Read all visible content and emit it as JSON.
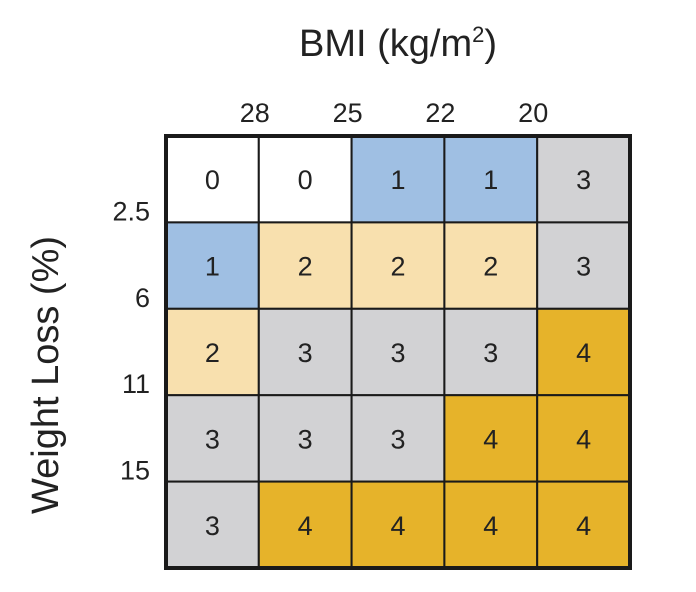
{
  "chart_data": {
    "type": "heatmap",
    "title": {
      "main": "BMI (kg/m",
      "superscript": "2",
      "close": ")"
    },
    "ylabel": "Weight Loss (%)",
    "x_ticks": [
      "28",
      "25",
      "22",
      "20"
    ],
    "y_ticks": [
      "2.5",
      "6",
      "11",
      "15"
    ],
    "values": [
      [
        0,
        0,
        1,
        1,
        3
      ],
      [
        1,
        2,
        2,
        2,
        3
      ],
      [
        2,
        3,
        3,
        3,
        4
      ],
      [
        3,
        3,
        3,
        4,
        4
      ],
      [
        3,
        4,
        4,
        4,
        4
      ]
    ],
    "colors": {
      "0": "#ffffff",
      "1": "#9fbfe3",
      "2": "#f8e0ae",
      "3": "#d2d2d4",
      "4": "#e6b32a"
    },
    "grid_color": "#1a1a1a",
    "legend": "none"
  }
}
